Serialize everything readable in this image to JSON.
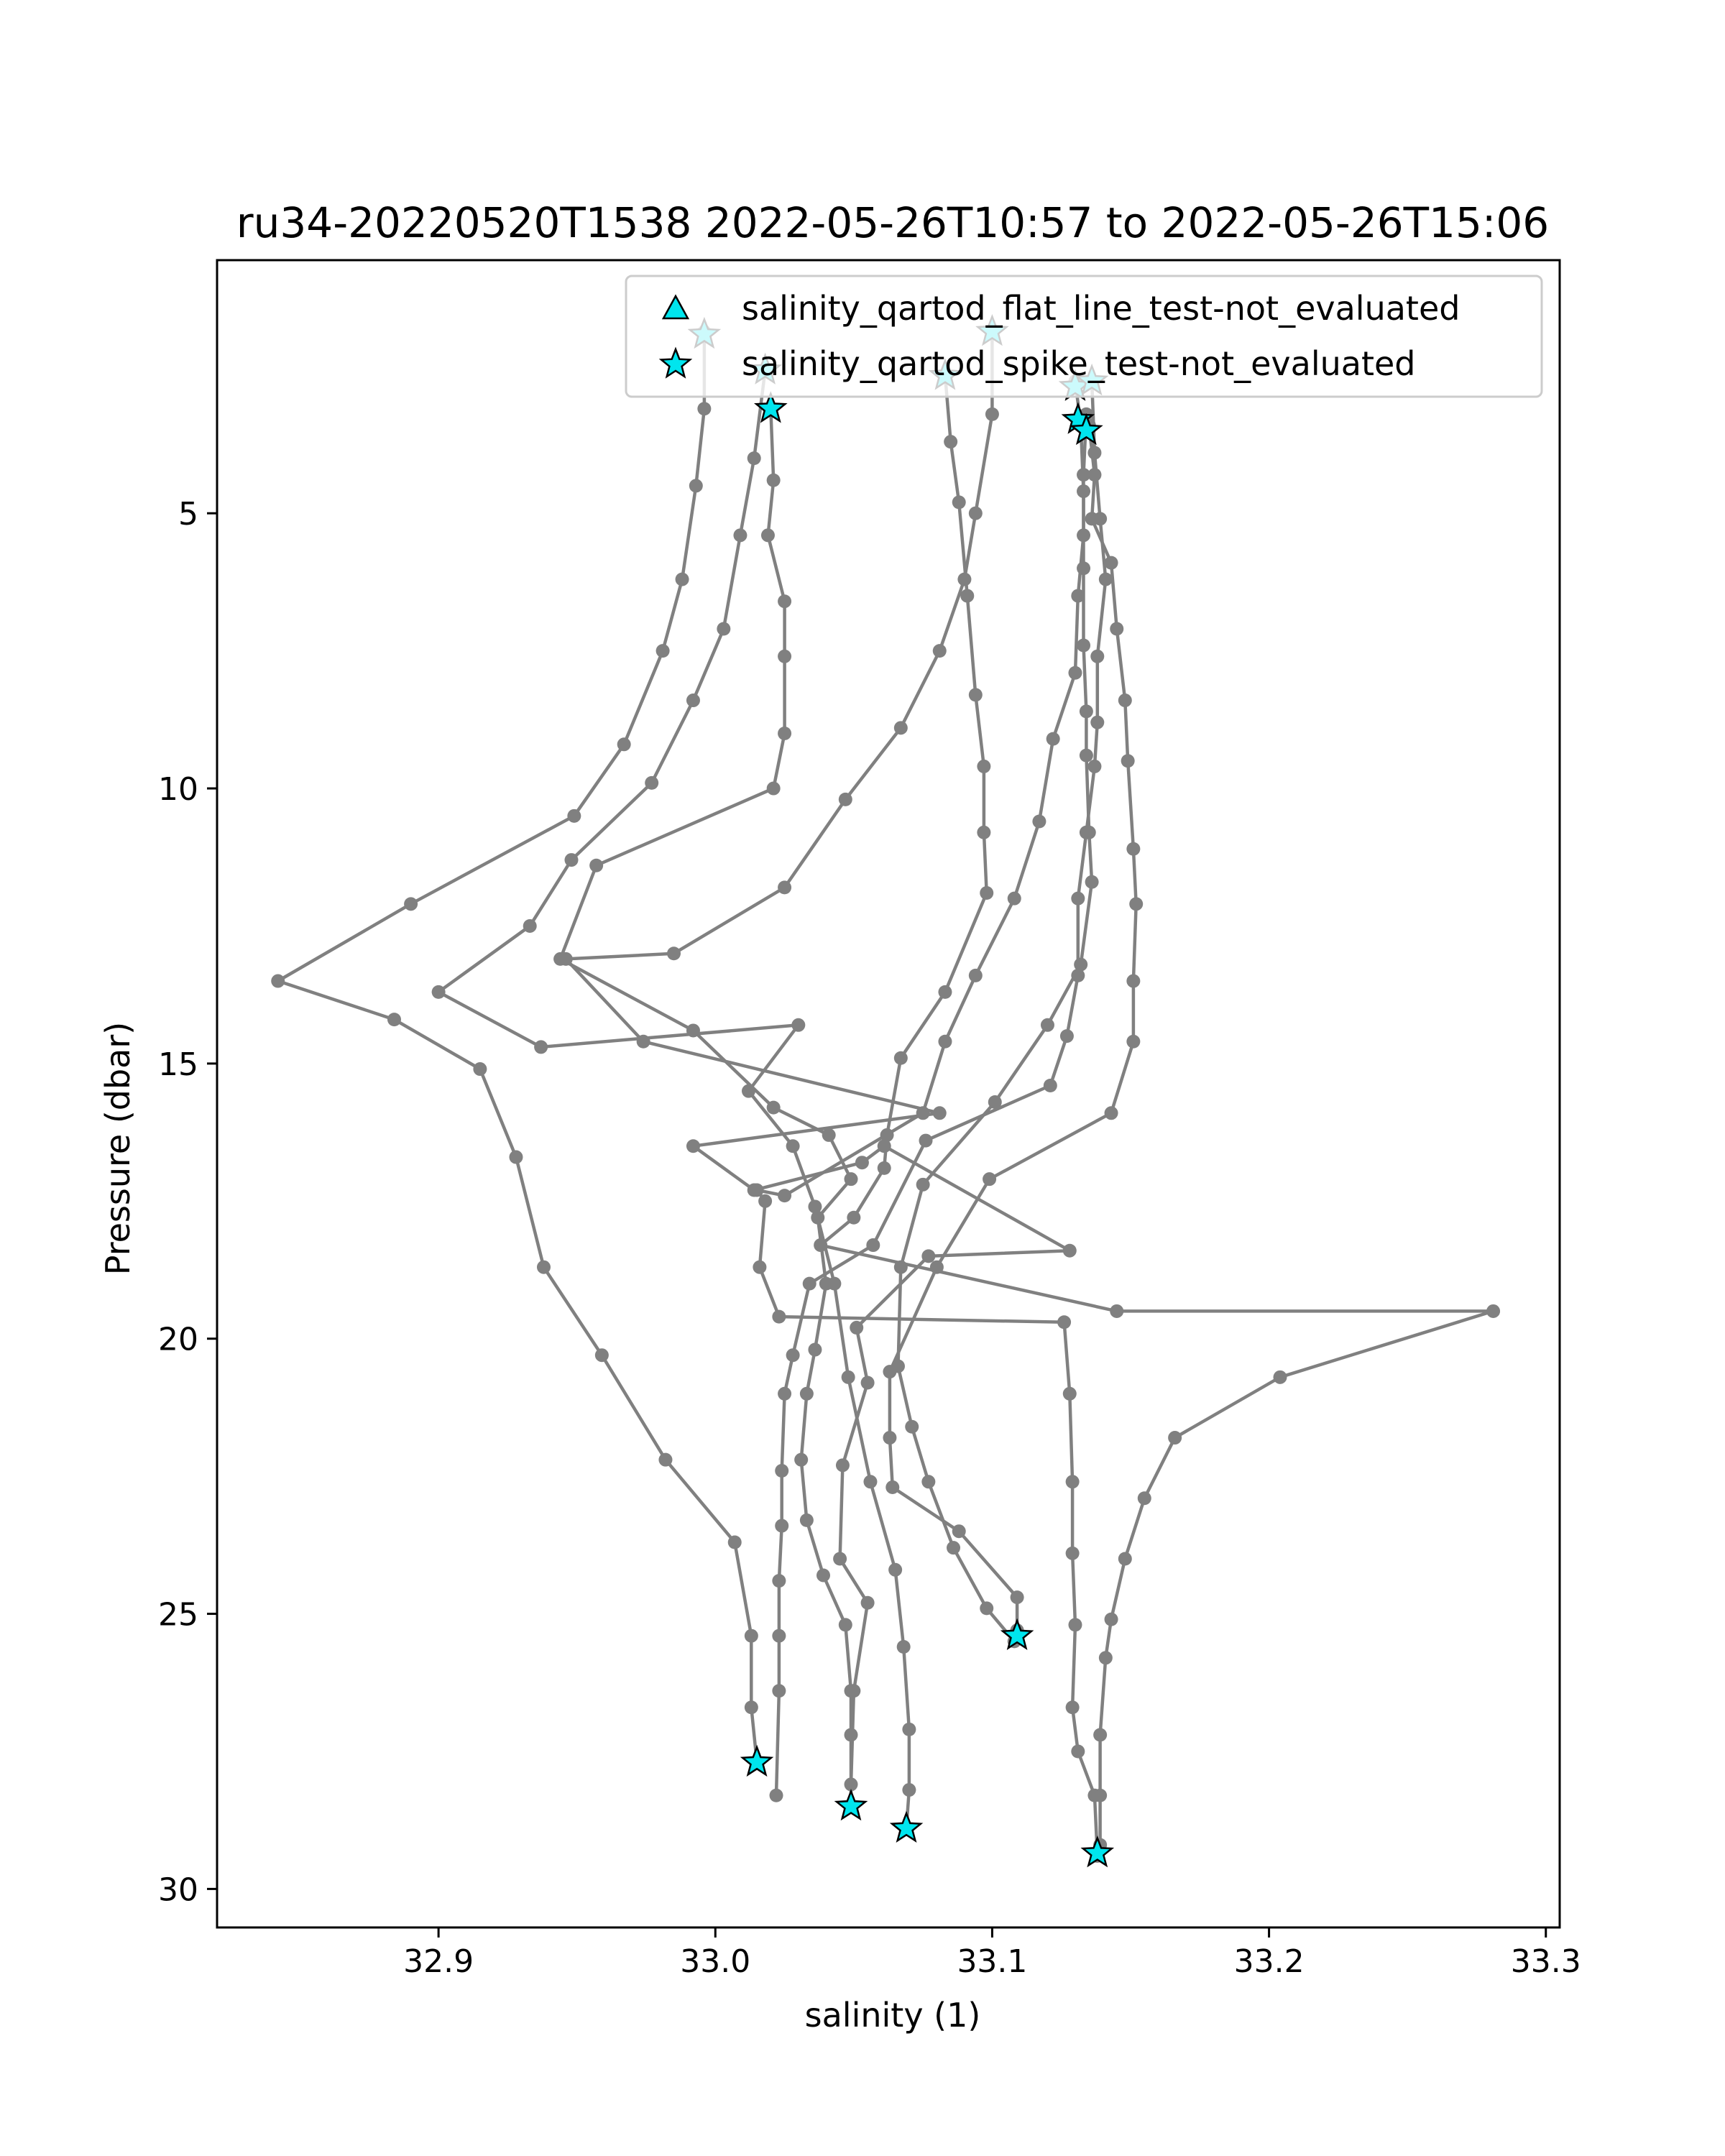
{
  "chart_data": {
    "type": "line",
    "title": "ru34-20220520T1538 2022-05-26T10:57 to 2022-05-26T15:06",
    "xlabel": "salinity (1)",
    "ylabel": "Pressure (dbar)",
    "xlim": [
      32.82,
      33.305
    ],
    "ylim": [
      30.7,
      0.4
    ],
    "y_inverted": true,
    "xticks": [
      32.9,
      33.0,
      33.1,
      33.2,
      33.3
    ],
    "xtick_labels": [
      "32.9",
      "33.0",
      "33.1",
      "33.2",
      "33.3"
    ],
    "yticks": [
      5,
      10,
      15,
      20,
      25,
      30
    ],
    "ytick_labels": [
      "5",
      "10",
      "15",
      "20",
      "25",
      "30"
    ],
    "grid": false,
    "legend_position": "upper-right",
    "colors": {
      "profile": "#808080",
      "marker_fill": "#00e5ee",
      "marker_edge": "#000000",
      "axes": "#000000",
      "background": "#ffffff"
    },
    "legend": [
      {
        "label": "salinity_qartod_flat_line_test-not_evaluated",
        "marker": "triangle"
      },
      {
        "label": "salinity_qartod_spike_test-not_evaluated",
        "marker": "star"
      }
    ],
    "series": [
      {
        "points": [
          [
            32.996,
            1.7
          ],
          [
            32.996,
            3.1
          ],
          [
            32.993,
            4.5
          ],
          [
            32.988,
            6.2
          ],
          [
            32.981,
            7.5
          ],
          [
            32.967,
            9.2
          ],
          [
            32.949,
            10.5
          ],
          [
            32.89,
            12.1
          ],
          [
            32.842,
            13.5
          ],
          [
            32.884,
            14.2
          ],
          [
            32.915,
            15.1
          ],
          [
            32.928,
            16.7
          ],
          [
            32.938,
            18.7
          ],
          [
            32.959,
            20.3
          ],
          [
            32.982,
            22.2
          ],
          [
            33.007,
            23.7
          ],
          [
            33.013,
            25.4
          ],
          [
            33.013,
            26.7
          ],
          [
            33.015,
            27.7
          ]
        ]
      },
      {
        "points": [
          [
            33.018,
            2.4
          ],
          [
            33.014,
            4.0
          ],
          [
            33.009,
            5.4
          ],
          [
            33.003,
            7.1
          ],
          [
            32.992,
            8.4
          ],
          [
            32.977,
            9.9
          ],
          [
            32.948,
            11.3
          ],
          [
            32.933,
            12.5
          ],
          [
            32.9,
            13.7
          ],
          [
            32.937,
            14.7
          ],
          [
            33.03,
            14.3
          ],
          [
            33.012,
            15.5
          ],
          [
            33.028,
            16.5
          ],
          [
            33.036,
            17.6
          ],
          [
            33.043,
            19.0
          ],
          [
            33.048,
            20.7
          ],
          [
            33.056,
            22.6
          ],
          [
            33.065,
            24.2
          ],
          [
            33.068,
            25.6
          ],
          [
            33.07,
            27.1
          ],
          [
            33.07,
            28.2
          ],
          [
            33.069,
            28.9
          ]
        ]
      },
      {
        "points": [
          [
            33.02,
            3.1
          ],
          [
            33.021,
            4.4
          ],
          [
            33.019,
            5.4
          ],
          [
            33.025,
            6.6
          ],
          [
            33.025,
            7.6
          ],
          [
            33.025,
            9.0
          ],
          [
            33.021,
            10.0
          ],
          [
            32.957,
            11.4
          ],
          [
            32.944,
            13.1
          ],
          [
            32.992,
            14.4
          ],
          [
            33.021,
            15.8
          ],
          [
            33.041,
            16.3
          ],
          [
            33.049,
            17.1
          ],
          [
            33.037,
            17.8
          ],
          [
            33.04,
            19.0
          ],
          [
            33.036,
            20.2
          ],
          [
            33.033,
            21.0
          ],
          [
            33.031,
            22.2
          ],
          [
            33.033,
            23.3
          ],
          [
            33.039,
            24.3
          ],
          [
            33.047,
            25.2
          ],
          [
            33.049,
            26.4
          ],
          [
            33.049,
            27.2
          ],
          [
            33.049,
            28.5
          ]
        ]
      },
      {
        "points": [
          [
            33.1,
            1.7
          ],
          [
            33.1,
            3.2
          ],
          [
            33.094,
            5.0
          ],
          [
            33.09,
            6.2
          ],
          [
            33.081,
            7.5
          ],
          [
            33.067,
            8.9
          ],
          [
            33.047,
            10.2
          ],
          [
            33.025,
            11.8
          ],
          [
            32.985,
            13.0
          ],
          [
            32.946,
            13.1
          ],
          [
            32.974,
            14.6
          ],
          [
            33.081,
            15.9
          ],
          [
            32.992,
            16.5
          ],
          [
            33.014,
            17.3
          ],
          [
            33.053,
            16.8
          ],
          [
            33.061,
            16.5
          ],
          [
            33.128,
            18.4
          ],
          [
            33.077,
            18.5
          ],
          [
            33.051,
            19.8
          ],
          [
            33.055,
            20.8
          ],
          [
            33.046,
            22.3
          ],
          [
            33.045,
            24.0
          ],
          [
            33.055,
            24.8
          ],
          [
            33.05,
            26.4
          ],
          [
            33.049,
            28.1
          ]
        ]
      },
      {
        "points": [
          [
            33.083,
            2.5
          ],
          [
            33.085,
            3.7
          ],
          [
            33.088,
            4.8
          ],
          [
            33.091,
            6.5
          ],
          [
            33.094,
            8.3
          ],
          [
            33.097,
            9.6
          ],
          [
            33.097,
            10.8
          ],
          [
            33.098,
            11.9
          ],
          [
            33.083,
            13.7
          ],
          [
            33.067,
            14.9
          ],
          [
            33.062,
            16.3
          ],
          [
            33.061,
            16.9
          ],
          [
            33.05,
            17.8
          ],
          [
            33.038,
            18.3
          ],
          [
            33.145,
            19.5
          ],
          [
            33.281,
            19.5
          ],
          [
            33.204,
            20.7
          ],
          [
            33.166,
            21.8
          ],
          [
            33.155,
            22.9
          ],
          [
            33.148,
            24.0
          ],
          [
            33.143,
            25.1
          ],
          [
            33.141,
            25.8
          ],
          [
            33.139,
            27.2
          ],
          [
            33.139,
            28.3
          ],
          [
            33.139,
            29.2
          ]
        ]
      },
      {
        "points": [
          [
            33.135,
            3.4
          ],
          [
            33.137,
            4.3
          ],
          [
            33.136,
            5.1
          ],
          [
            33.143,
            5.9
          ],
          [
            33.145,
            7.1
          ],
          [
            33.148,
            8.4
          ],
          [
            33.149,
            9.5
          ],
          [
            33.151,
            11.1
          ],
          [
            33.152,
            12.1
          ],
          [
            33.151,
            13.5
          ],
          [
            33.151,
            14.6
          ],
          [
            33.143,
            15.9
          ],
          [
            33.099,
            17.1
          ],
          [
            33.08,
            18.7
          ],
          [
            33.063,
            20.6
          ],
          [
            33.063,
            21.8
          ],
          [
            33.064,
            22.7
          ],
          [
            33.088,
            23.5
          ],
          [
            33.109,
            24.7
          ],
          [
            33.109,
            25.3
          ]
        ]
      },
      {
        "points": [
          [
            33.13,
            2.6
          ],
          [
            33.132,
            3.4
          ],
          [
            33.133,
            4.6
          ],
          [
            33.133,
            6.0
          ],
          [
            33.133,
            7.4
          ],
          [
            33.134,
            8.6
          ],
          [
            33.134,
            9.4
          ],
          [
            33.135,
            10.8
          ],
          [
            33.136,
            11.7
          ],
          [
            33.132,
            13.2
          ],
          [
            33.12,
            14.3
          ],
          [
            33.101,
            15.7
          ],
          [
            33.075,
            17.2
          ],
          [
            33.067,
            18.7
          ],
          [
            33.066,
            20.5
          ],
          [
            33.071,
            21.6
          ],
          [
            33.077,
            22.6
          ],
          [
            33.086,
            23.8
          ],
          [
            33.098,
            24.9
          ],
          [
            33.108,
            25.5
          ]
        ]
      },
      {
        "points": [
          [
            33.136,
            2.6
          ],
          [
            33.137,
            3.9
          ],
          [
            33.139,
            5.1
          ],
          [
            33.141,
            6.2
          ],
          [
            33.138,
            7.6
          ],
          [
            33.138,
            8.8
          ],
          [
            33.137,
            9.6
          ],
          [
            33.134,
            10.8
          ],
          [
            33.131,
            12.0
          ],
          [
            33.131,
            13.4
          ],
          [
            33.127,
            14.5
          ],
          [
            33.121,
            15.4
          ],
          [
            33.076,
            16.4
          ],
          [
            33.057,
            18.3
          ],
          [
            33.034,
            19.0
          ],
          [
            33.028,
            20.3
          ],
          [
            33.025,
            21.0
          ],
          [
            33.024,
            22.4
          ],
          [
            33.024,
            23.4
          ],
          [
            33.023,
            24.4
          ],
          [
            33.023,
            25.4
          ],
          [
            33.023,
            26.4
          ],
          [
            33.022,
            28.3
          ]
        ]
      },
      {
        "points": [
          [
            33.134,
            3.2
          ],
          [
            33.133,
            4.3
          ],
          [
            33.133,
            5.4
          ],
          [
            33.131,
            6.5
          ],
          [
            33.13,
            7.9
          ],
          [
            33.122,
            9.1
          ],
          [
            33.117,
            10.6
          ],
          [
            33.108,
            12.0
          ],
          [
            33.094,
            13.4
          ],
          [
            33.083,
            14.6
          ],
          [
            33.075,
            15.9
          ],
          [
            33.025,
            17.4
          ],
          [
            33.015,
            17.3
          ],
          [
            33.018,
            17.5
          ],
          [
            33.016,
            18.7
          ],
          [
            33.023,
            19.6
          ],
          [
            33.126,
            19.7
          ],
          [
            33.128,
            21.0
          ],
          [
            33.129,
            22.6
          ],
          [
            33.129,
            23.9
          ],
          [
            33.13,
            25.2
          ],
          [
            33.129,
            26.7
          ],
          [
            33.131,
            27.5
          ],
          [
            33.137,
            28.3
          ],
          [
            33.138,
            29.4
          ]
        ]
      }
    ],
    "spike_test_not_evaluated": [
      [
        32.996,
        1.75
      ],
      [
        33.018,
        2.4
      ],
      [
        33.02,
        3.1
      ],
      [
        33.083,
        2.5
      ],
      [
        33.1,
        1.7
      ],
      [
        33.13,
        2.7
      ],
      [
        33.136,
        2.6
      ],
      [
        33.131,
        3.3
      ],
      [
        33.134,
        3.5
      ],
      [
        33.109,
        25.4
      ],
      [
        33.015,
        27.7
      ],
      [
        33.049,
        28.5
      ],
      [
        33.069,
        28.9
      ],
      [
        33.138,
        29.35
      ]
    ]
  }
}
